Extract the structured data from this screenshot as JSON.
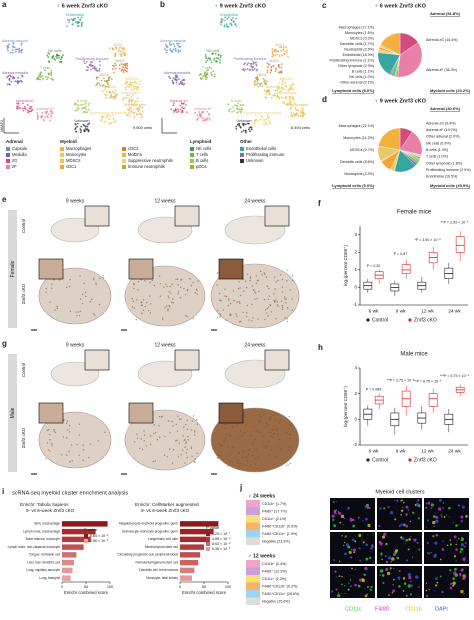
{
  "figure": {
    "a": {
      "label": "a",
      "title": "♀ 6 week Znrf3 cKO",
      "cells": "9,800 cells",
      "axis_y": "UMAP2",
      "clusters": [
        {
          "name": "Endothelial",
          "color": "#35a6a0"
        },
        {
          "name": "NK cells",
          "color": "#3e9b3e"
        },
        {
          "name": "T cells",
          "color": "#7ab341"
        },
        {
          "name": "B cells",
          "color": "#9cca5c"
        },
        {
          "name": "Proliferating immune",
          "color": "#8d6bb0"
        },
        {
          "name": "cDC1",
          "color": "#f0a33a"
        },
        {
          "name": "cDC2",
          "color": "#e07b2c"
        },
        {
          "name": "pDCs",
          "color": "#b7a13b"
        },
        {
          "name": "MoDCs",
          "color": "#d9c140"
        },
        {
          "name": "MDSCs",
          "color": "#f4c542"
        },
        {
          "name": "Monocytes",
          "color": "#e8c86b"
        },
        {
          "name": "Macrophages",
          "color": "#f3b240"
        },
        {
          "name": "Suppressive neutrophils",
          "color": "#f2d16b"
        },
        {
          "name": "Adrenal capsule",
          "color": "#6f8fc9"
        },
        {
          "name": "Adrenal medulla",
          "color": "#7b5aa6"
        },
        {
          "name": "Adrenal zG",
          "color": "#d64b7f"
        },
        {
          "name": "Adrenal zF",
          "color": "#e87fa9"
        },
        {
          "name": "Unknown",
          "color": "#333333"
        }
      ]
    },
    "b": {
      "label": "b",
      "title": "♀ 9 week Znrf3 cKO",
      "cells": "8,494 cells",
      "clusters": [
        {
          "name": "Endothelial",
          "color": "#35a6a0"
        },
        {
          "name": "NK cells",
          "color": "#3e9b3e"
        },
        {
          "name": "T cells",
          "color": "#7ab341"
        },
        {
          "name": "B cells",
          "color": "#9cca5c"
        },
        {
          "name": "Proliferating immune",
          "color": "#8d6bb0"
        },
        {
          "name": "cDC1",
          "color": "#f0a33a"
        },
        {
          "name": "cDC2",
          "color": "#e07b2c"
        },
        {
          "name": "pDCs",
          "color": "#b7a13b"
        },
        {
          "name": "MoDCs",
          "color": "#d9c140"
        },
        {
          "name": "MDSCs",
          "color": "#f4c542"
        },
        {
          "name": "Monocytes",
          "color": "#e8c86b"
        },
        {
          "name": "Macrophages",
          "color": "#f3b240"
        },
        {
          "name": "Suppressive neutrophils",
          "color": "#f2d16b"
        },
        {
          "name": "Adrenal capsule",
          "color": "#6f8fc9"
        },
        {
          "name": "Adrenal medulla",
          "color": "#7b5aa6"
        },
        {
          "name": "Adrenal zG",
          "color": "#d64b7f"
        },
        {
          "name": "Adrenal zF",
          "color": "#e87fa9"
        },
        {
          "name": "Unknown",
          "color": "#333333"
        }
      ]
    },
    "umap_legend": [
      {
        "title": "Adrenal",
        "items": [
          {
            "name": "Capsule",
            "color": "#6f8fc9"
          },
          {
            "name": "Medulla",
            "color": "#7b5aa6"
          },
          {
            "name": "zG",
            "color": "#d64b7f"
          },
          {
            "name": "zF",
            "color": "#e87fa9"
          }
        ]
      },
      {
        "title": "Myeloid",
        "items": [
          {
            "name": "Macrophages",
            "color": "#f3b240"
          },
          {
            "name": "Monocytes",
            "color": "#e8c86b"
          },
          {
            "name": "MDSCs",
            "color": "#f4c542"
          },
          {
            "name": "cDC1",
            "color": "#f0a33a"
          },
          {
            "name": "cDC2",
            "color": "#e07b2c"
          },
          {
            "name": "MoDCs",
            "color": "#d9c140"
          },
          {
            "name": "Suppressive neutrophils",
            "color": "#f2d16b"
          },
          {
            "name": "Immune neutrophils",
            "color": "#c9a43a"
          }
        ]
      },
      {
        "title": "Lymphoid",
        "items": [
          {
            "name": "NK cells",
            "color": "#3e9b3e"
          },
          {
            "name": "T cells",
            "color": "#7ab341"
          },
          {
            "name": "B cells",
            "color": "#9cca5c"
          },
          {
            "name": "pDCs",
            "color": "#b7a13b"
          }
        ]
      },
      {
        "title": "Other",
        "items": [
          {
            "name": "Endothelial cells",
            "color": "#35a6a0"
          },
          {
            "name": "Proliferating immune",
            "color": "#8d6bb0"
          },
          {
            "name": "Unknown",
            "color": "#333333"
          }
        ]
      }
    ],
    "c": {
      "label": "c"
    },
    "d": {
      "label": "d"
    },
    "e": {
      "label": "e",
      "sex": "Female",
      "columns": [
        "9 weeks",
        "12 weeks",
        "24 weeks"
      ],
      "rows": [
        "Control",
        "Znrf3 cKO"
      ]
    },
    "f": {
      "label": "f"
    },
    "g": {
      "label": "g",
      "sex": "Male",
      "columns": [
        "9 weeks",
        "12 weeks",
        "24 weeks"
      ],
      "rows": [
        "Control",
        "Znrf3 cKO"
      ]
    },
    "h": {
      "label": "h"
    },
    "i": {
      "label": "i",
      "title": "scRNA-seq myeloid cluster enrichment analysis"
    },
    "j": {
      "label": "j",
      "title": "Myeloid cell clusters",
      "groups": [
        {
          "title": "♀ 24 weeks",
          "items": [
            {
              "name": "CD11b⁺ (1.7%)",
              "color": "#f2a3c8"
            },
            {
              "name": "F4/80⁺ (17.7%)",
              "color": "#c9a0dc"
            },
            {
              "name": "CD11c⁺ (2.1%)",
              "color": "#f5e07a"
            },
            {
              "name": "F4/80⁺CD11b⁺ (0.5%)",
              "color": "#f7b267"
            },
            {
              "name": "F4/80⁺CD11c⁺ (1.9%)",
              "color": "#9fd3f0"
            },
            {
              "name": "Negative (21.9%)",
              "color": "#dddddd"
            }
          ]
        },
        {
          "title": "♂ 12 weeks",
          "items": [
            {
              "name": "CD11b⁺ (0.4%)",
              "color": "#f2a3c8"
            },
            {
              "name": "F4/80⁺ (12.3%)",
              "color": "#c9a0dc"
            },
            {
              "name": "CD11c⁺ (1.2%)",
              "color": "#f5e07a"
            },
            {
              "name": "F4/80⁺CD11b⁺ (0.2%)",
              "color": "#f7b267"
            },
            {
              "name": "F4/80⁺CD11c⁺ (28.6%)",
              "color": "#9fd3f0"
            },
            {
              "name": "Negative (15.6%)",
              "color": "#dddddd"
            }
          ]
        }
      ],
      "channels": [
        {
          "name": "CD11c",
          "color": "#33cc33"
        },
        {
          "name": "F4/80",
          "color": "#cc33cc"
        },
        {
          "name": "CD11b",
          "color": "#d9c21a"
        },
        {
          "name": "DAPI",
          "color": "#3355dd"
        }
      ]
    }
  },
  "chart_data": [
    {
      "type": "pie",
      "title": "♀ 6 week Znrf3 cKO",
      "categories": [
        "Adrenal zG",
        "Adrenal zF",
        "Other adrenal",
        "NK cells",
        "B cells",
        "Other lymphoid",
        "Proliferating immune",
        "Endothelial",
        "Neutrophils",
        "Dendritic cells",
        "MDSCs",
        "Monocytes",
        "Macrophages"
      ],
      "values": [
        15.4,
        36.3,
        0.1,
        1.0,
        1.1,
        2.9,
        1.1,
        18.9,
        2.5,
        1.7,
        0.3,
        1.6,
        17.1
      ],
      "value_labels": [
        "(15.4%)",
        "(36.3%)",
        "(0.1%)",
        "(1.0%)",
        "(1.1%)",
        "(2.9%)",
        "(1.1%)",
        "(18.9%)",
        "(2.5%)",
        "(1.7%)",
        "(0.3%)",
        "(1.6%)",
        "(17.1%)"
      ],
      "colors": [
        "#d64b7f",
        "#e87fa9",
        "#f5c6d8",
        "#3e9b3e",
        "#9cca5c",
        "#6fbf6f",
        "#8d6bb0",
        "#35a6a0",
        "#f2d16b",
        "#f0a33a",
        "#f4c542",
        "#e8c86b",
        "#f3b240"
      ],
      "group_labels": [
        "Adrenal (51.8%)",
        "Lymphoid cells (5.0%)",
        "Myeloid cells (23.2%)"
      ]
    },
    {
      "type": "pie",
      "title": "♀ 9 week Znrf3 cKO",
      "categories": [
        "Adrenal zG",
        "Adrenal zF",
        "Other adrenal",
        "NK cells",
        "B cells",
        "T cells",
        "Other lymphoid",
        "Proliferating immune",
        "Endothelial",
        "Neutrophils",
        "Dendritic cells",
        "MDSCs",
        "Monocytes",
        "Macrophages"
      ],
      "values": [
        9.4,
        19.2,
        2.0,
        0.9,
        1.3,
        1.0,
        1.8,
        2.0,
        16.5,
        3.3,
        8.6,
        0.7,
        11.2,
        22.1
      ],
      "value_labels": [
        "(9.4%)",
        "(19.2%)",
        "(2.0%)",
        "(0.9%)",
        "(1.3%)",
        "(1.0%)",
        "(1.8%)",
        "(2.0%)",
        "(16.5%)",
        "(3.3%)",
        "(8.6%)",
        "(0.7%)",
        "(11.2%)",
        "(22.1%)"
      ],
      "colors": [
        "#d64b7f",
        "#e87fa9",
        "#f5c6d8",
        "#3e9b3e",
        "#9cca5c",
        "#7ab341",
        "#6fbf6f",
        "#8d6bb0",
        "#35a6a0",
        "#f2d16b",
        "#f0a33a",
        "#f4c542",
        "#e8c86b",
        "#f3b240"
      ],
      "group_labels": [
        "Adrenal (30.6%)",
        "Lymphoid cells (5.0%)",
        "Myeloid cells (45.9%)"
      ]
    },
    {
      "type": "box",
      "title": "Female mice",
      "ylabel": "log₂(percent CD68⁺)",
      "categories": [
        "6 wk",
        "9 wk",
        "12 wk",
        "24 wk"
      ],
      "series": [
        {
          "name": "Control",
          "color": "#222222",
          "values": [
            [
              -0.3,
              -0.1,
              0.1,
              0.3,
              0.5
            ],
            [
              -0.5,
              -0.2,
              0,
              0.2,
              0.4
            ],
            [
              -0.3,
              -0.1,
              0.1,
              0.3,
              0.6
            ],
            [
              0.2,
              0.5,
              0.8,
              1.1,
              1.4
            ]
          ]
        },
        {
          "name": "Znrf3 cKO",
          "color": "#d62728",
          "values": [
            [
              0.2,
              0.5,
              0.7,
              0.9,
              1.0
            ],
            [
              0.5,
              0.8,
              1.0,
              1.3,
              1.6
            ],
            [
              1.0,
              1.4,
              1.7,
              2.0,
              2.3
            ],
            [
              1.5,
              2.0,
              2.4,
              2.9,
              3.2
            ]
          ]
        }
      ],
      "ylim": [
        -1,
        3.5
      ],
      "yticks": [
        -1,
        0,
        1,
        2,
        3
      ],
      "annotations": [
        "P = 0.20",
        "P = 0.87",
        "*P = 3.50 × 10⁻³",
        "**P = 2.53 × 10⁻³"
      ]
    },
    {
      "type": "box",
      "title": "Male mice",
      "ylabel": "log₂(percent CD68⁺)",
      "categories": [
        "6 wk",
        "9 wk",
        "12 wk",
        "24 wk"
      ],
      "series": [
        {
          "name": "Control",
          "color": "#222222",
          "values": [
            [
              -0.5,
              0,
              0.4,
              0.8,
              1.1
            ],
            [
              -1.2,
              -0.5,
              0,
              0.5,
              0.9
            ],
            [
              -0.8,
              -0.3,
              0.1,
              0.5,
              1.0
            ],
            [
              -1.0,
              -0.4,
              0,
              0.4,
              0.8
            ]
          ]
        },
        {
          "name": "Znrf3 cKO",
          "color": "#d62728",
          "values": [
            [
              0.8,
              1.2,
              1.5,
              1.8,
              2.0
            ],
            [
              0.3,
              1.0,
              1.6,
              2.2,
              2.6
            ],
            [
              0.5,
              1.0,
              1.6,
              2.0,
              2.4
            ],
            [
              1.8,
              2.1,
              2.3,
              2.5,
              2.7
            ]
          ]
        }
      ],
      "ylim": [
        -2,
        4
      ],
      "yticks": [
        -2,
        0,
        2,
        4
      ],
      "annotations": [
        "P = 0.084",
        "**P = 2.75 × 10⁻³",
        "**P = 8.75 × 10⁻³",
        "***P = 5.75 × 10⁻⁴"
      ]
    },
    {
      "type": "hbar",
      "title": "Enrichr: Tabula Sapiens",
      "subtitle": "9- vs 6-week Znrf3 cKO",
      "categories": [
        "Skin, macrophage",
        "Lymph node, macrophage",
        "Bone marrow, monocyte",
        "Lymph node, non-classical monocyte",
        "Tongue, Schwann cell",
        "Liver, liver dendritic cell",
        "Lung, capillary aerocyte",
        "Lung, basophil"
      ],
      "values": [
        95,
        70,
        60,
        45,
        30,
        25,
        22,
        18
      ],
      "colors": [
        "#8b1a1a",
        "#a52a2a",
        "#b23a3a",
        "#c05050",
        "#d07070",
        "#dc8a8a",
        "#e39a9a",
        "#e8a0a0"
      ],
      "xlabel": "Enrichr combined score",
      "xlim": [
        0,
        100
      ],
      "xticks": [
        0,
        50,
        100
      ],
      "legend_title": "P value",
      "legend": [
        {
          "label": "6.64 × 10⁻⁵",
          "color": "#8b1a1a"
        },
        {
          "label": "2.56 × 10⁻²",
          "color": "#e8a0a0"
        }
      ]
    },
    {
      "type": "hbar",
      "title": "Enrichr: CellMarker augmented",
      "subtitle": "9- vs 6-week Znrf3 cKO",
      "categories": [
        "Megakaryocyte-erythroid progenitor, germ",
        "Granulocyte-monocyte progenitor, germ",
        "Langerhans cell, skin",
        "Mesenchymal stem cell",
        "Circulating progenitor cell, peripheral blood",
        "Periodontal ligament stem cell",
        "Dendritic cell, bone marrow",
        "Monocyte, fetal kidney"
      ],
      "values": [
        80,
        70,
        62,
        50,
        42,
        38,
        30,
        25
      ],
      "colors": [
        "#8b1a1a",
        "#9a2222",
        "#a52a2a",
        "#b23a3a",
        "#c05050",
        "#cc6464",
        "#d87c7c",
        "#e39a9a"
      ],
      "xlabel": "Enrichr combined score",
      "xlim": [
        0,
        100
      ],
      "xticks": [
        0,
        50,
        100
      ],
      "legend_title": "P value",
      "legend": [
        {
          "label": "1.25 × 10⁻⁷",
          "color": "#8b1a1a"
        },
        {
          "label": "4.88 × 10⁻⁶",
          "color": "#b23a3a"
        },
        {
          "label": "8.53 × 10⁻⁶",
          "color": "#cc6464"
        },
        {
          "label": "6.38 × 10⁻³",
          "color": "#e39a9a"
        }
      ]
    }
  ]
}
